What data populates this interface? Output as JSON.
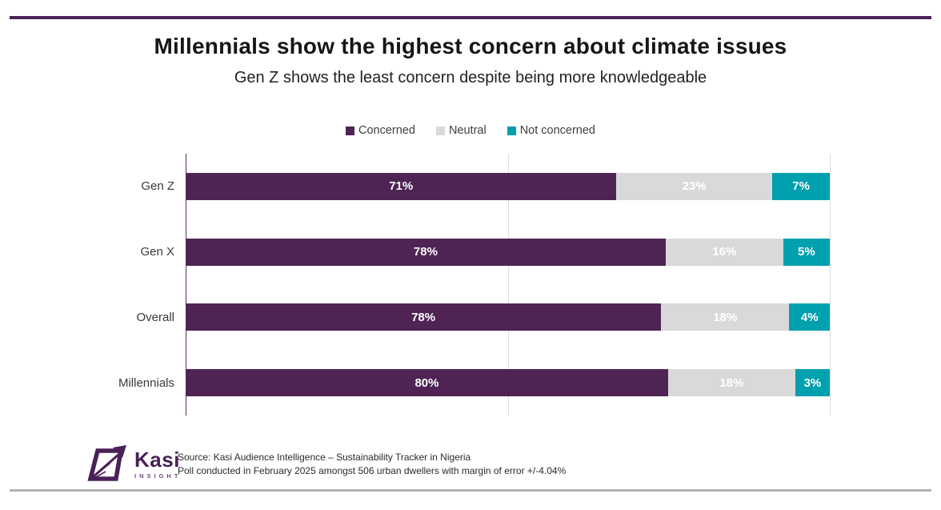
{
  "header": {
    "title": "Millennials show the highest concern about climate issues",
    "subtitle": "Gen Z shows the least concern despite being more knowledgeable"
  },
  "chart_data": {
    "type": "bar",
    "orientation": "horizontal",
    "stacked": true,
    "normalized": true,
    "categories": [
      "Gen Z",
      "Gen X",
      "Overall",
      "Millennials"
    ],
    "series": [
      {
        "name": "Concerned",
        "color": "#4F2455",
        "values": [
          71,
          78,
          78,
          80
        ]
      },
      {
        "name": "Neutral",
        "color": "#D9D9D9",
        "values": [
          23,
          16,
          18,
          18
        ]
      },
      {
        "name": "Not concerned",
        "color": "#00A0AE",
        "values": [
          7,
          5,
          4,
          3
        ]
      }
    ],
    "value_suffix": "%",
    "legend_position": "top-center",
    "gridlines": [
      "0%",
      "50%",
      "100%"
    ]
  },
  "footer": {
    "logo_name": "Kasi",
    "logo_tagline": "INSIGHT",
    "source_line1": "Source: Kasi Audience Intelligence – Sustainability Tracker in Nigeria",
    "source_line2": "Poll conducted in February 2025 amongst 506 urban dwellers with margin of error +/-4.04%"
  },
  "colors": {
    "concerned": "#4F2455",
    "neutral": "#D9D9D9",
    "not_concerned": "#00A0AE",
    "top_rule": "#4A2157",
    "bottom_rule": "#B3B3B3",
    "axis_line": "#5B2F63",
    "gridline": "#DCDCDC",
    "bar_label_text": "#FFFFFF"
  }
}
